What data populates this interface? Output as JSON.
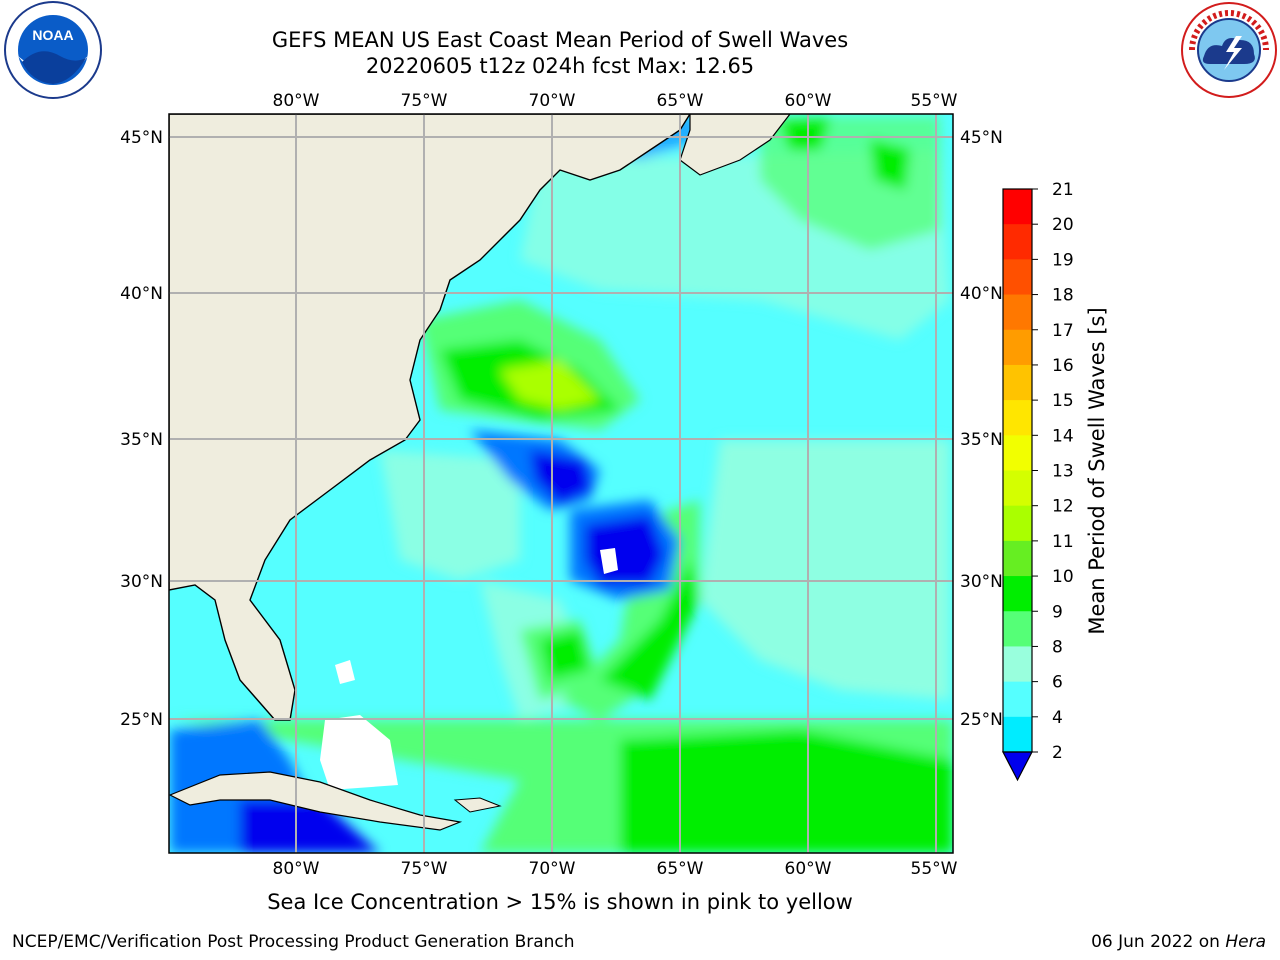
{
  "title": {
    "line1": "GEFS MEAN US East Coast Mean Period of Swell Waves",
    "line2": "20220605 t12z 024h fcst   Max: 12.65"
  },
  "map": {
    "lon_labels": [
      "80°W",
      "75°W",
      "70°W",
      "65°W",
      "60°W",
      "55°W"
    ],
    "lat_labels": [
      "45°N",
      "40°N",
      "35°N",
      "30°N",
      "25°N"
    ],
    "grid": true,
    "colors": {
      "land": "#efedde",
      "coast": "#000000",
      "grid": "#b0b0b0"
    }
  },
  "colorbar": {
    "label": "Mean Period of Swell Waves [s]",
    "ticks": [
      "21",
      "20",
      "19",
      "18",
      "17",
      "16",
      "15",
      "14",
      "13",
      "12",
      "11",
      "10",
      "9",
      "8",
      "6",
      "4",
      "2"
    ],
    "colors": [
      "#ff0000",
      "#ff2a00",
      "#ff5000",
      "#ff7800",
      "#ff9c00",
      "#ffc300",
      "#ffe600",
      "#f2ff00",
      "#d4ff00",
      "#aaff00",
      "#66ee22",
      "#00ee00",
      "#55ff77",
      "#99ffdd",
      "#55ffff",
      "#00ecff",
      "#0077ff",
      "#0000ee"
    ],
    "extend": "min"
  },
  "note": "Sea Ice Concentration > 15% is shown in pink to yellow",
  "footer": {
    "left": "NCEP/EMC/Verification Post Processing Product Generation Branch",
    "right_date": "06 Jun 2022 on ",
    "right_machine": "Hera"
  },
  "logos": {
    "noaa_text": "NOAA",
    "nws_ring_text": "NATIONAL WEATHER SERVICE"
  },
  "chart_data": {
    "type": "heatmap",
    "title": "GEFS MEAN US East Coast Mean Period of Swell Waves",
    "subtitle": "20220605 t12z 024h fcst   Max: 12.65",
    "variable": "Mean Period of Swell Waves [s]",
    "max": 12.65,
    "color_levels": [
      2,
      4,
      6,
      8,
      9,
      10,
      11,
      12,
      13,
      14,
      15,
      16,
      17,
      18,
      19,
      20,
      21
    ],
    "xlim": [
      "85°W",
      "54.5°W"
    ],
    "ylim": [
      "20.5°N",
      "45.8°N"
    ]
  }
}
